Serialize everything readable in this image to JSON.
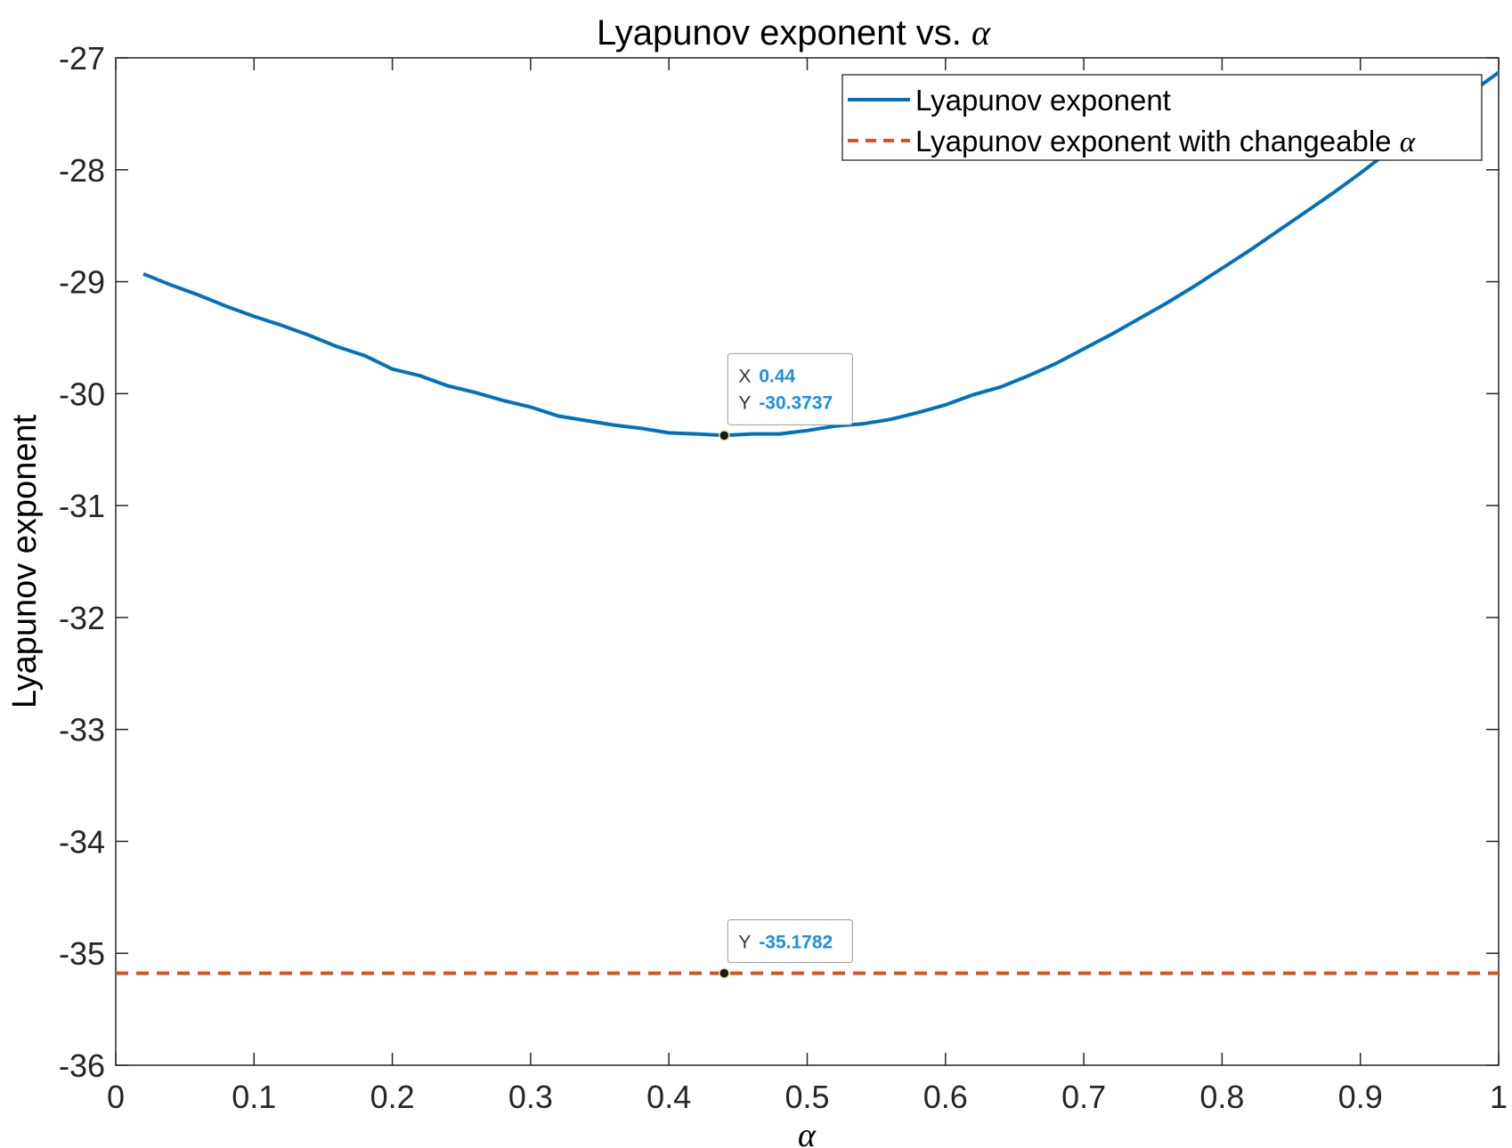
{
  "chart_data": {
    "type": "line",
    "title": "Lyapunov exponent vs. ",
    "title_symbol": "α",
    "xlabel_symbol": "α",
    "ylabel": "Lyapunov exponent",
    "xlim": [
      0,
      1
    ],
    "ylim": [
      -36,
      -27
    ],
    "x_ticks": [
      "0",
      "0.1",
      "0.2",
      "0.3",
      "0.4",
      "0.5",
      "0.6",
      "0.7",
      "0.8",
      "0.9",
      "1"
    ],
    "y_ticks": [
      "-27",
      "-28",
      "-29",
      "-30",
      "-31",
      "-32",
      "-33",
      "-34",
      "-35",
      "-36"
    ],
    "grid": false,
    "legend_position": "top-right",
    "series": [
      {
        "name": "Lyapunov exponent",
        "style": "solid",
        "color": "#0072BD",
        "x": [
          0.02,
          0.04,
          0.06,
          0.08,
          0.1,
          0.12,
          0.14,
          0.16,
          0.18,
          0.2,
          0.22,
          0.24,
          0.26,
          0.28,
          0.3,
          0.32,
          0.34,
          0.36,
          0.38,
          0.4,
          0.42,
          0.44,
          0.46,
          0.48,
          0.5,
          0.52,
          0.54,
          0.56,
          0.58,
          0.6,
          0.62,
          0.64,
          0.66,
          0.68,
          0.7,
          0.72,
          0.74,
          0.76,
          0.78,
          0.8,
          0.82,
          0.84,
          0.86,
          0.88,
          0.9,
          0.92,
          0.94,
          0.96,
          0.98,
          1.0
        ],
        "y": [
          -28.93,
          -29.03,
          -29.12,
          -29.22,
          -29.31,
          -29.39,
          -29.48,
          -29.58,
          -29.66,
          -29.78,
          -29.84,
          -29.93,
          -29.99,
          -30.06,
          -30.12,
          -30.2,
          -30.24,
          -30.28,
          -30.31,
          -30.35,
          -30.36,
          -30.3737,
          -30.36,
          -30.36,
          -30.33,
          -30.29,
          -30.27,
          -30.23,
          -30.17,
          -30.1,
          -30.01,
          -29.94,
          -29.84,
          -29.73,
          -29.6,
          -29.47,
          -29.33,
          -29.19,
          -29.04,
          -28.88,
          -28.72,
          -28.55,
          -28.38,
          -28.21,
          -28.03,
          -27.84,
          -27.66,
          -27.49,
          -27.31,
          -27.13
        ]
      },
      {
        "name": "Lyapunov exponent with changeable ",
        "name_symbol": "α",
        "style": "dashed",
        "color": "#D95319",
        "x": [
          0,
          1
        ],
        "y": [
          -35.1782,
          -35.1782
        ]
      }
    ],
    "datatips": [
      {
        "x": 0.44,
        "y": -30.3737,
        "x_label": "X",
        "x_text": "0.44",
        "y_label": "Y",
        "y_text": "-30.3737"
      },
      {
        "x": 0.44,
        "y": -35.1782,
        "y_label": "Y",
        "y_text": "-35.1782"
      }
    ],
    "colors": {
      "tip_value": "#1A8FE3",
      "axis": "#262626"
    }
  }
}
